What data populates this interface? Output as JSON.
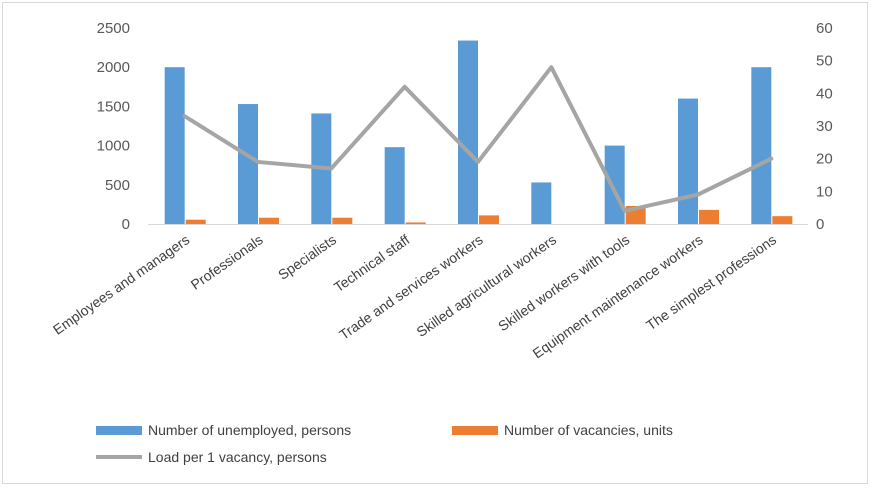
{
  "chart_data": {
    "type": "bar",
    "categories": [
      "Employees and managers",
      "Professionals",
      "Specialists",
      "Technical staff",
      "Trade and services workers",
      "Skilled agricultural workers",
      "Skilled workers with tools",
      "Equipment maintenance workers",
      "The simplest professions"
    ],
    "series": [
      {
        "name": "Number of unemployed, persons",
        "type": "bar",
        "axis": "left",
        "color": "#5b9bd5",
        "values": [
          2000,
          1530,
          1410,
          980,
          2340,
          530,
          1000,
          1600,
          2000
        ]
      },
      {
        "name": "Number of vacancies, units",
        "type": "bar",
        "axis": "left",
        "color": "#ed7d31",
        "values": [
          55,
          80,
          80,
          20,
          110,
          0,
          230,
          180,
          100
        ]
      },
      {
        "name": "Load per 1 vacancy, persons",
        "type": "line",
        "axis": "right",
        "color": "#a5a5a5",
        "values": [
          33,
          19,
          17,
          42,
          19,
          48,
          4,
          9,
          20
        ]
      }
    ],
    "ylim": [
      0,
      2500
    ],
    "yticks": [
      "0",
      "500",
      "1000",
      "1500",
      "2000",
      "2500"
    ],
    "y2lim": [
      0,
      60
    ],
    "y2ticks": [
      "0",
      "10",
      "20",
      "30",
      "40",
      "50",
      "60"
    ],
    "legend_position": "bottom",
    "grid": false
  }
}
